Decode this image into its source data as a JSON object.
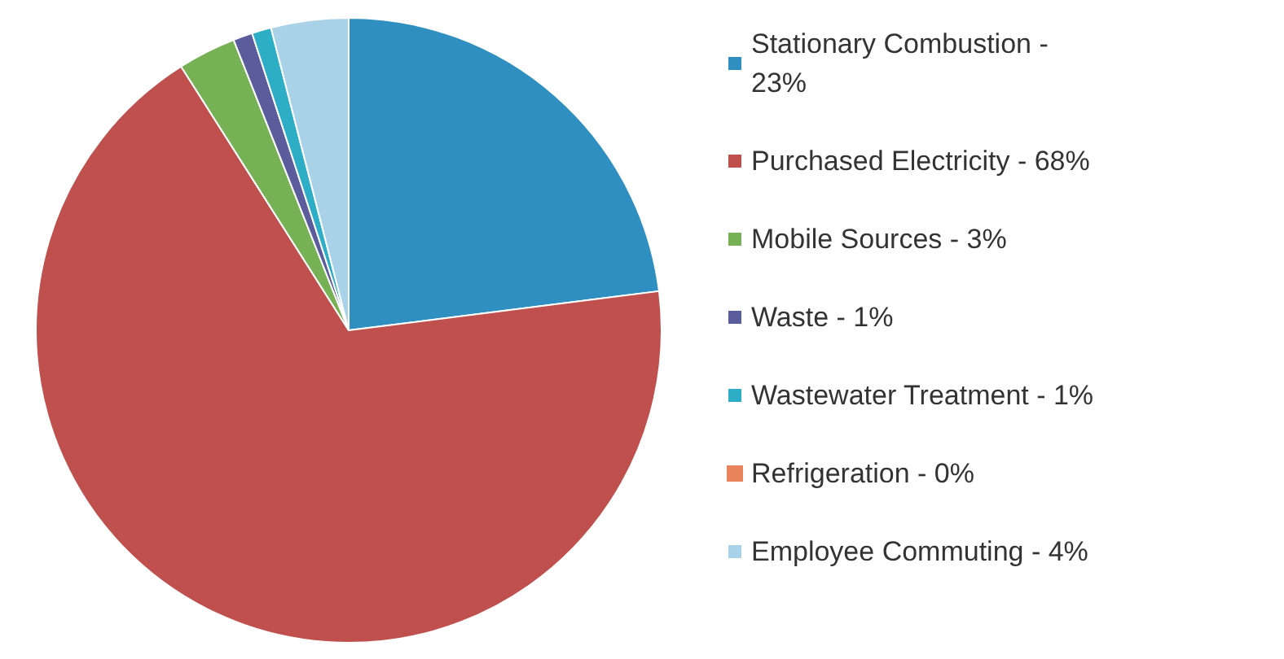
{
  "chart_data": {
    "type": "pie",
    "categories": [
      "Stationary Combustion - 23%",
      "Purchased Electricity - 68%",
      "Mobile Sources - 3%",
      "Waste - 1%",
      "Wastewater Treatment - 1%",
      "Refrigeration - 0%",
      "Employee Commuting - 4%"
    ],
    "values": [
      23,
      68,
      3,
      1,
      1,
      0,
      4
    ],
    "colors": [
      "#2e8fc0",
      "#c0504d",
      "#76b255",
      "#5a5c9c",
      "#2eaec6",
      "#e9845c",
      "#a9d1e8"
    ],
    "legend": "right"
  }
}
